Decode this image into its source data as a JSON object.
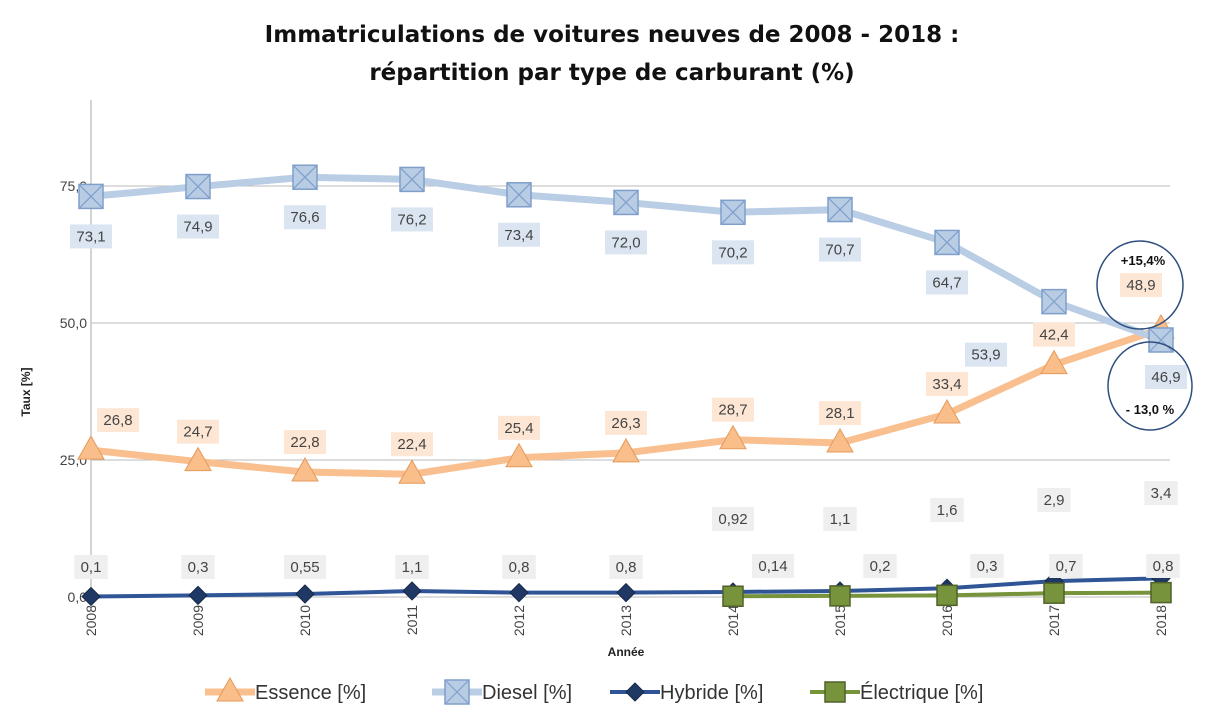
{
  "chart_data": {
    "type": "line",
    "title": [
      "Immatriculations de voitures neuves de 2008 - 2018 :",
      "répartition par type de carburant (%)"
    ],
    "xlabel": "Année",
    "ylabel": "Taux [%]",
    "ylim": [
      0,
      90
    ],
    "yticks": [
      "0,0",
      "25,0",
      "50,0",
      "75,0"
    ],
    "ytick_values": [
      0,
      25,
      50,
      75
    ],
    "grid": "horizontal",
    "legend_position": "bottom",
    "x": [
      "2008",
      "2009",
      "2010",
      "2011",
      "2012",
      "2013",
      "2014",
      "2015",
      "2016",
      "2017",
      "2018"
    ],
    "series": [
      {
        "name": "Essence [%]",
        "color": "#f9bf8f",
        "marker": "triangle",
        "values": [
          26.8,
          24.7,
          22.8,
          22.4,
          25.4,
          26.3,
          28.7,
          28.1,
          33.4,
          42.4,
          48.9
        ],
        "labels": [
          "26,8",
          "24,7",
          "22,8",
          "22,4",
          "25,4",
          "26,3",
          "28,7",
          "28,1",
          "33,4",
          "42,4",
          "48,9"
        ]
      },
      {
        "name": "Diesel [%]",
        "color": "#b9cde5",
        "marker": "square-x",
        "values": [
          73.1,
          74.9,
          76.6,
          76.2,
          73.4,
          72.0,
          70.2,
          70.7,
          64.7,
          53.9,
          46.9
        ],
        "labels": [
          "73,1",
          "74,9",
          "76,6",
          "76,2",
          "73,4",
          "72,0",
          "70,2",
          "70,7",
          "64,7",
          "53,9",
          "46,9"
        ]
      },
      {
        "name": "Hybride [%]",
        "color": "#2f5597",
        "marker": "diamond",
        "values": [
          0.1,
          0.3,
          0.55,
          1.1,
          0.8,
          0.8,
          0.92,
          1.1,
          1.6,
          2.9,
          3.4
        ],
        "labels": [
          "0,1",
          "0,3",
          "0,55",
          "1,1",
          "0,8",
          "0,8",
          "0,92",
          "1,1",
          "1,6",
          "2,9",
          "3,4"
        ]
      },
      {
        "name": "Électrique [%]",
        "color": "#77933c",
        "marker": "square",
        "values": [
          null,
          null,
          null,
          null,
          null,
          null,
          0.14,
          0.2,
          0.3,
          0.7,
          0.8
        ],
        "labels": [
          null,
          null,
          null,
          null,
          null,
          null,
          "0,14",
          "0,2",
          "0,3",
          "0,7",
          "0,8"
        ]
      }
    ],
    "annotations": [
      "+15,4%",
      "- 13,0 %"
    ]
  }
}
